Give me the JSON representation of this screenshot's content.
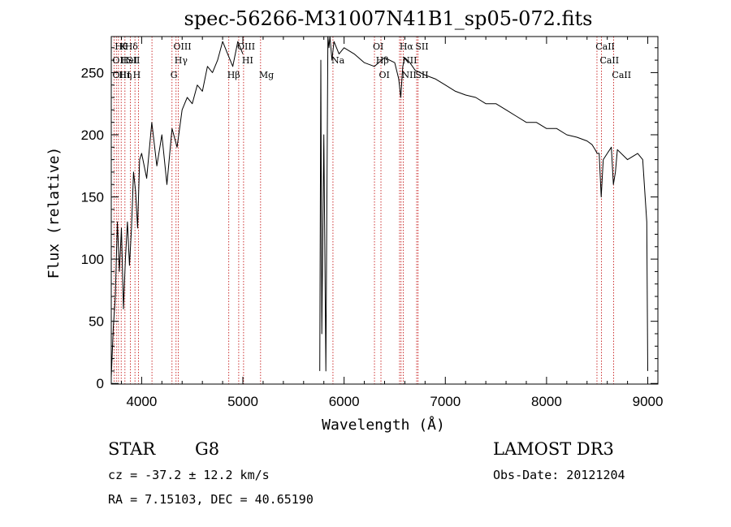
{
  "chart_data": {
    "type": "line",
    "title": "spec-56266-M31007N41B1_sp05-072.fits",
    "xlabel": "Wavelength (Å)",
    "ylabel": "Flux (relative)",
    "xlim": [
      3700,
      9100
    ],
    "ylim": [
      -5,
      2790
    ],
    "x_ticks": [
      4000,
      5000,
      6000,
      7000,
      8000,
      9000
    ],
    "y_ticks": [
      0,
      50,
      100,
      150,
      200,
      250
    ],
    "y_tick_scale": 10,
    "series": [
      {
        "name": "flux",
        "x": [
          3700,
          3720,
          3740,
          3760,
          3780,
          3800,
          3820,
          3840,
          3860,
          3880,
          3900,
          3920,
          3940,
          3960,
          3980,
          4000,
          4050,
          4100,
          4150,
          4200,
          4250,
          4300,
          4350,
          4400,
          4450,
          4500,
          4550,
          4600,
          4650,
          4700,
          4750,
          4800,
          4850,
          4900,
          4950,
          5000,
          5020,
          5100,
          5700,
          5760,
          5770,
          5780,
          5800,
          5820,
          5840,
          5850,
          5860,
          5880,
          5900,
          5950,
          6000,
          6100,
          6200,
          6300,
          6400,
          6500,
          6540,
          6560,
          6580,
          6600,
          6650,
          6700,
          6800,
          6900,
          7000,
          7100,
          7200,
          7300,
          7400,
          7500,
          7600,
          7700,
          7800,
          7900,
          8000,
          8100,
          8200,
          8300,
          8400,
          8450,
          8480,
          8500,
          8520,
          8540,
          8560,
          8600,
          8640,
          8660,
          8680,
          8700,
          8800,
          8900,
          8950,
          8990,
          9000
        ],
        "values": [
          50,
          450,
          700,
          1300,
          900,
          1250,
          600,
          1000,
          1300,
          950,
          1250,
          1700,
          1550,
          1250,
          1800,
          1850,
          1650,
          2100,
          1750,
          2000,
          1600,
          2050,
          1900,
          2200,
          2300,
          2250,
          2400,
          2350,
          2550,
          2500,
          2600,
          2750,
          2650,
          2550,
          2750,
          2650,
          null,
          null,
          null,
          100,
          2600,
          400,
          2000,
          100,
          2800,
          2700,
          2800,
          2600,
          2750,
          2650,
          2700,
          2650,
          2580,
          2550,
          2620,
          2580,
          2450,
          2300,
          2550,
          2620,
          2580,
          2520,
          2480,
          2450,
          2400,
          2350,
          2320,
          2300,
          2250,
          2250,
          2200,
          2150,
          2100,
          2100,
          2050,
          2050,
          2000,
          1980,
          1950,
          1920,
          1880,
          1850,
          1850,
          1500,
          1800,
          1850,
          1900,
          1600,
          1700,
          1880,
          1800,
          1850,
          1800,
          1300,
          100
        ]
      }
    ],
    "lines": [
      {
        "wl": 3750,
        "label": "Hθ",
        "row": 0
      },
      {
        "wl": 3800,
        "label": "K",
        "row": 0
      },
      {
        "wl": 3850,
        "label": "Hδ",
        "row": 0
      },
      {
        "wl": 4330,
        "label": "OIII",
        "row": 0
      },
      {
        "wl": 4960,
        "label": "OIII",
        "row": 0
      },
      {
        "wl": 6300,
        "label": "OI",
        "row": 0
      },
      {
        "wl": 6563,
        "label": "Hα",
        "row": 0
      },
      {
        "wl": 6720,
        "label": "SII",
        "row": 0
      },
      {
        "wl": 8500,
        "label": "CaII",
        "row": 0
      },
      {
        "wl": 3727,
        "label": "OII",
        "row": 1
      },
      {
        "wl": 3810,
        "label": "HeI",
        "row": 1
      },
      {
        "wl": 3870,
        "label": "SII",
        "row": 1
      },
      {
        "wl": 4340,
        "label": "Hγ",
        "row": 1
      },
      {
        "wl": 5007,
        "label": "HI",
        "row": 1
      },
      {
        "wl": 6330,
        "label": "Hβ",
        "row": 1
      },
      {
        "wl": 6590,
        "label": "NII",
        "row": 1
      },
      {
        "wl": 8542,
        "label": "CaII",
        "row": 1
      },
      {
        "wl": 3728,
        "label": "OIII",
        "row": 2
      },
      {
        "wl": 3790,
        "label": "Hη",
        "row": 2
      },
      {
        "wl": 3930,
        "label": "H",
        "row": 2
      },
      {
        "wl": 4300,
        "label": "G",
        "row": 2
      },
      {
        "wl": 4861,
        "label": "Hβ",
        "row": 2
      },
      {
        "wl": 5175,
        "label": "Mg",
        "row": 2
      },
      {
        "wl": 5890,
        "label": "Na",
        "row": 1
      },
      {
        "wl": 6360,
        "label": "OI",
        "row": 2
      },
      {
        "wl": 6585,
        "label": "NII",
        "row": 2
      },
      {
        "wl": 6720,
        "label": "SII",
        "row": 2
      },
      {
        "wl": 8662,
        "label": "CaII",
        "row": 2
      }
    ],
    "line_positions": [
      3727,
      3750,
      3771,
      3798,
      3835,
      3889,
      3934,
      3969,
      4102,
      4300,
      4340,
      4363,
      4861,
      4959,
      5007,
      5175,
      5890,
      6300,
      6364,
      6548,
      6563,
      6584,
      6717,
      6731,
      8498,
      8542,
      8662
    ]
  },
  "info": {
    "object_type": "STAR",
    "subclass": "G8",
    "survey": "LAMOST DR3",
    "redshift": "cz = -37.2 ± 12.2 km/s",
    "obs_date": "Obs-Date: 20121204",
    "coords": "RA =   7.15103, DEC =  40.65190"
  }
}
